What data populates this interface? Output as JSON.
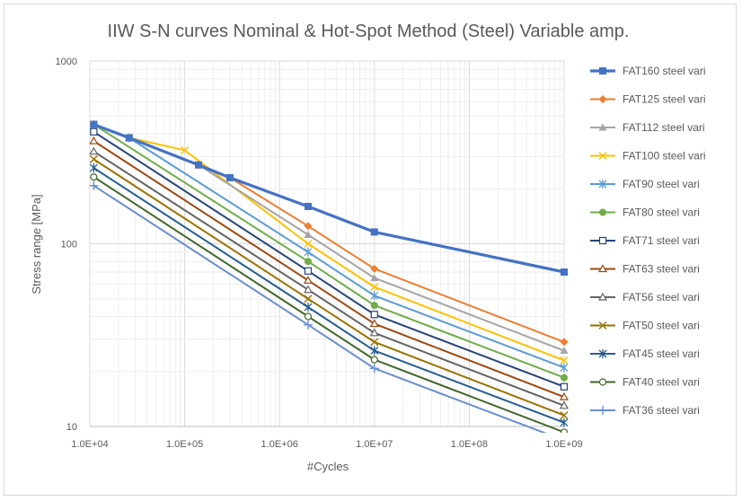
{
  "chart_data": {
    "type": "line",
    "title": "IIW S-N curves Nominal & Hot-Spot Method (Steel) Variable amp.",
    "xlabel": "#Cycles",
    "ylabel": "Stress range [MPa]",
    "x_scale": "log",
    "y_scale": "log",
    "xlim": [
      10000,
      1000000000
    ],
    "ylim": [
      10,
      1000
    ],
    "x_ticks": [
      "1.0E+04",
      "1.0E+05",
      "1.0E+06",
      "1.0E+07",
      "1.0E+08",
      "1.0E+09"
    ],
    "y_ticks": [
      "10",
      "100",
      "1000"
    ],
    "grid": true,
    "legend_position": "right",
    "series": [
      {
        "name": "FAT160 steel vari",
        "color": "#4472C4",
        "marker": "filled-square",
        "points": [
          [
            11000,
            450
          ],
          [
            26000,
            380
          ],
          [
            140000,
            270
          ],
          [
            300000,
            230
          ],
          [
            2000000,
            160
          ],
          [
            10000000,
            116
          ],
          [
            1000000000,
            70
          ]
        ]
      },
      {
        "name": "FAT125 steel vari",
        "color": "#ED7D31",
        "marker": "filled-diamond",
        "points": [
          [
            11000,
            450
          ],
          [
            26000,
            380
          ],
          [
            140000,
            270
          ],
          [
            300000,
            230
          ],
          [
            2000000,
            125
          ],
          [
            10000000,
            73
          ],
          [
            1000000000,
            29
          ]
        ]
      },
      {
        "name": "FAT112 steel vari",
        "color": "#A5A5A5",
        "marker": "filled-triangle",
        "points": [
          [
            11000,
            450
          ],
          [
            26000,
            380
          ],
          [
            140000,
            270
          ],
          [
            2000000,
            112
          ],
          [
            10000000,
            65
          ],
          [
            1000000000,
            26
          ]
        ]
      },
      {
        "name": "FAT100 steel vari",
        "color": "#FFC000",
        "marker": "x",
        "points": [
          [
            11000,
            450
          ],
          [
            26000,
            380
          ],
          [
            100000,
            325
          ],
          [
            2000000,
            100
          ],
          [
            10000000,
            58
          ],
          [
            1000000000,
            23
          ]
        ]
      },
      {
        "name": "FAT90 steel vari",
        "color": "#5B9BD5",
        "marker": "asterisk",
        "points": [
          [
            11000,
            450
          ],
          [
            26000,
            380
          ],
          [
            2000000,
            90
          ],
          [
            10000000,
            52
          ],
          [
            1000000000,
            21
          ]
        ]
      },
      {
        "name": "FAT80 steel vari",
        "color": "#70AD47",
        "marker": "filled-circle",
        "points": [
          [
            11000,
            450
          ],
          [
            2000000,
            80
          ],
          [
            10000000,
            46
          ],
          [
            1000000000,
            18.5
          ]
        ]
      },
      {
        "name": "FAT71 steel vari",
        "color": "#264478",
        "marker": "open-square",
        "points": [
          [
            11000,
            410
          ],
          [
            2000000,
            71
          ],
          [
            10000000,
            41
          ],
          [
            1000000000,
            16.5
          ]
        ]
      },
      {
        "name": "FAT63 steel vari",
        "color": "#9E480E",
        "marker": "open-triangle",
        "points": [
          [
            11000,
            365
          ],
          [
            2000000,
            63
          ],
          [
            10000000,
            36.5
          ],
          [
            1000000000,
            14.5
          ]
        ]
      },
      {
        "name": "FAT56 steel vari",
        "color": "#636363",
        "marker": "open-triangle",
        "points": [
          [
            11000,
            320
          ],
          [
            2000000,
            56
          ],
          [
            10000000,
            32.5
          ],
          [
            1000000000,
            13
          ]
        ]
      },
      {
        "name": "FAT50 steel vari",
        "color": "#997300",
        "marker": "x",
        "points": [
          [
            11000,
            290
          ],
          [
            2000000,
            50
          ],
          [
            10000000,
            29
          ],
          [
            1000000000,
            11.5
          ]
        ]
      },
      {
        "name": "FAT45 steel vari",
        "color": "#255E91",
        "marker": "asterisk",
        "points": [
          [
            11000,
            260
          ],
          [
            2000000,
            45
          ],
          [
            10000000,
            26
          ],
          [
            1000000000,
            10.5
          ]
        ]
      },
      {
        "name": "FAT40 steel vari",
        "color": "#43682B",
        "marker": "open-circle",
        "points": [
          [
            11000,
            232
          ],
          [
            2000000,
            40
          ],
          [
            10000000,
            23.2
          ],
          [
            1000000000,
            9.3
          ]
        ]
      },
      {
        "name": "FAT36 steel vari",
        "color": "#698ED0",
        "marker": "plus",
        "points": [
          [
            11000,
            208
          ],
          [
            2000000,
            36
          ],
          [
            10000000,
            20.8
          ],
          [
            1000000000,
            8.4
          ]
        ]
      }
    ]
  }
}
